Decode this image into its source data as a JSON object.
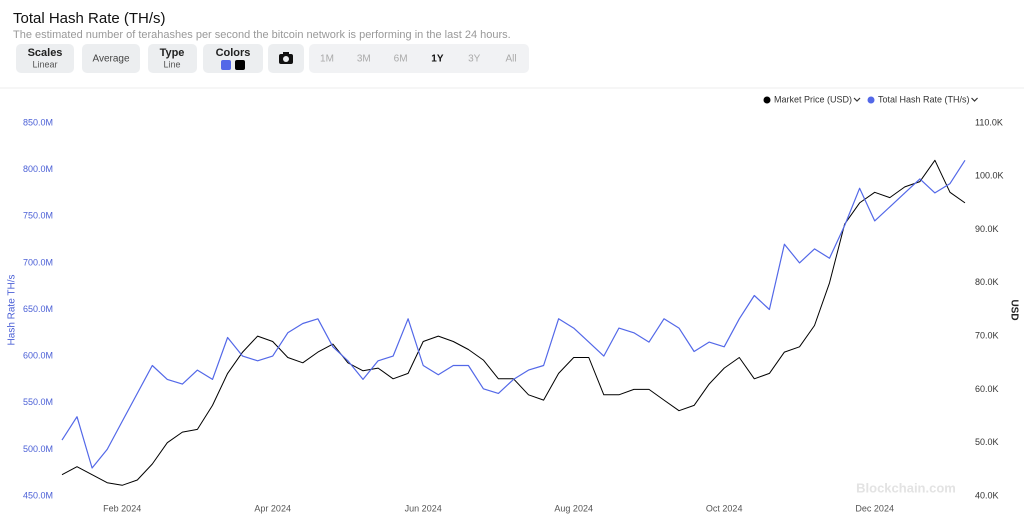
{
  "chart_data": {
    "type": "line",
    "title": "Total Hash Rate (TH/s)",
    "subtitle": "The estimated number of terahashes per second the bitcoin network is performing in the last 24 hours.",
    "controls": {
      "scales": {
        "label": "Scales",
        "value": "Linear"
      },
      "average": "Average",
      "type": {
        "label": "Type",
        "value": "Line"
      },
      "colors": "Colors",
      "ranges": [
        "1M",
        "3M",
        "6M",
        "1Y",
        "3Y",
        "All"
      ],
      "active_range": "1Y"
    },
    "watermark": "Blockchain.com",
    "y_label": "Hash Rate TH/s",
    "y2_label": "USD",
    "categories": [
      null,
      null,
      null,
      null,
      "Feb 2024",
      null,
      null,
      null,
      null,
      null,
      null,
      null,
      null,
      null,
      "Apr 2024",
      null,
      null,
      null,
      null,
      null,
      null,
      null,
      null,
      null,
      "Jun 2024",
      null,
      null,
      null,
      null,
      null,
      null,
      null,
      null,
      null,
      "Aug 2024",
      null,
      null,
      null,
      null,
      null,
      null,
      null,
      null,
      null,
      "Oct 2024",
      null,
      null,
      null,
      null,
      null,
      null,
      null,
      null,
      null,
      "Dec 2024",
      null,
      null,
      null,
      null,
      null,
      null
    ],
    "series": [
      {
        "name": "Market Price (USD)",
        "color": "#000000",
        "axis": "y2",
        "values": [
          44000,
          45500,
          44000,
          42500,
          42000,
          43000,
          46000,
          50000,
          52000,
          52500,
          57000,
          63000,
          67000,
          70000,
          69000,
          66000,
          65000,
          67000,
          68500,
          65000,
          63500,
          64000,
          62000,
          63000,
          69000,
          70000,
          69000,
          67500,
          65500,
          62000,
          62000,
          59000,
          58000,
          63000,
          66000,
          66000,
          59000,
          59000,
          60000,
          60000,
          58000,
          56000,
          57000,
          61000,
          64000,
          66000,
          62000,
          63000,
          67000,
          68000,
          72000,
          80000,
          91000,
          95000,
          97000,
          96000,
          98000,
          99000,
          103000,
          97000,
          95000
        ]
      },
      {
        "name": "Total Hash Rate (TH/s)",
        "color": "#5368e8",
        "axis": "y",
        "values": [
          510000000,
          535000000,
          480000000,
          500000000,
          530000000,
          560000000,
          590000000,
          575000000,
          570000000,
          585000000,
          575000000,
          620000000,
          600000000,
          595000000,
          600000000,
          625000000,
          635000000,
          640000000,
          610000000,
          595000000,
          575000000,
          595000000,
          600000000,
          640000000,
          590000000,
          580000000,
          590000000,
          590000000,
          565000000,
          560000000,
          575000000,
          585000000,
          590000000,
          640000000,
          630000000,
          615000000,
          600000000,
          630000000,
          625000000,
          615000000,
          640000000,
          630000000,
          605000000,
          615000000,
          610000000,
          640000000,
          665000000,
          650000000,
          720000000,
          700000000,
          715000000,
          705000000,
          740000000,
          780000000,
          745000000,
          760000000,
          775000000,
          790000000,
          775000000,
          785000000,
          810000000
        ]
      }
    ],
    "ylim": [
      450000000,
      850000000
    ],
    "yticks": [
      {
        "value": 450000000,
        "label": "450.0M"
      },
      {
        "value": 500000000,
        "label": "500.0M"
      },
      {
        "value": 550000000,
        "label": "550.0M"
      },
      {
        "value": 600000000,
        "label": "600.0M"
      },
      {
        "value": 650000000,
        "label": "650.0M"
      },
      {
        "value": 700000000,
        "label": "700.0M"
      },
      {
        "value": 750000000,
        "label": "750.0M"
      },
      {
        "value": 800000000,
        "label": "800.0M"
      },
      {
        "value": 850000000,
        "label": "850.0M"
      }
    ],
    "y2lim": [
      40000,
      110000
    ],
    "y2ticks": [
      {
        "value": 40000,
        "label": "40.0K"
      },
      {
        "value": 50000,
        "label": "50.0K"
      },
      {
        "value": 60000,
        "label": "60.0K"
      },
      {
        "value": 70000,
        "label": "70.0K"
      },
      {
        "value": 80000,
        "label": "80.0K"
      },
      {
        "value": 90000,
        "label": "90.0K"
      },
      {
        "value": 100000,
        "label": "100.0K"
      },
      {
        "value": 110000,
        "label": "110.0K"
      }
    ],
    "grid": false,
    "legend": "top-right"
  }
}
